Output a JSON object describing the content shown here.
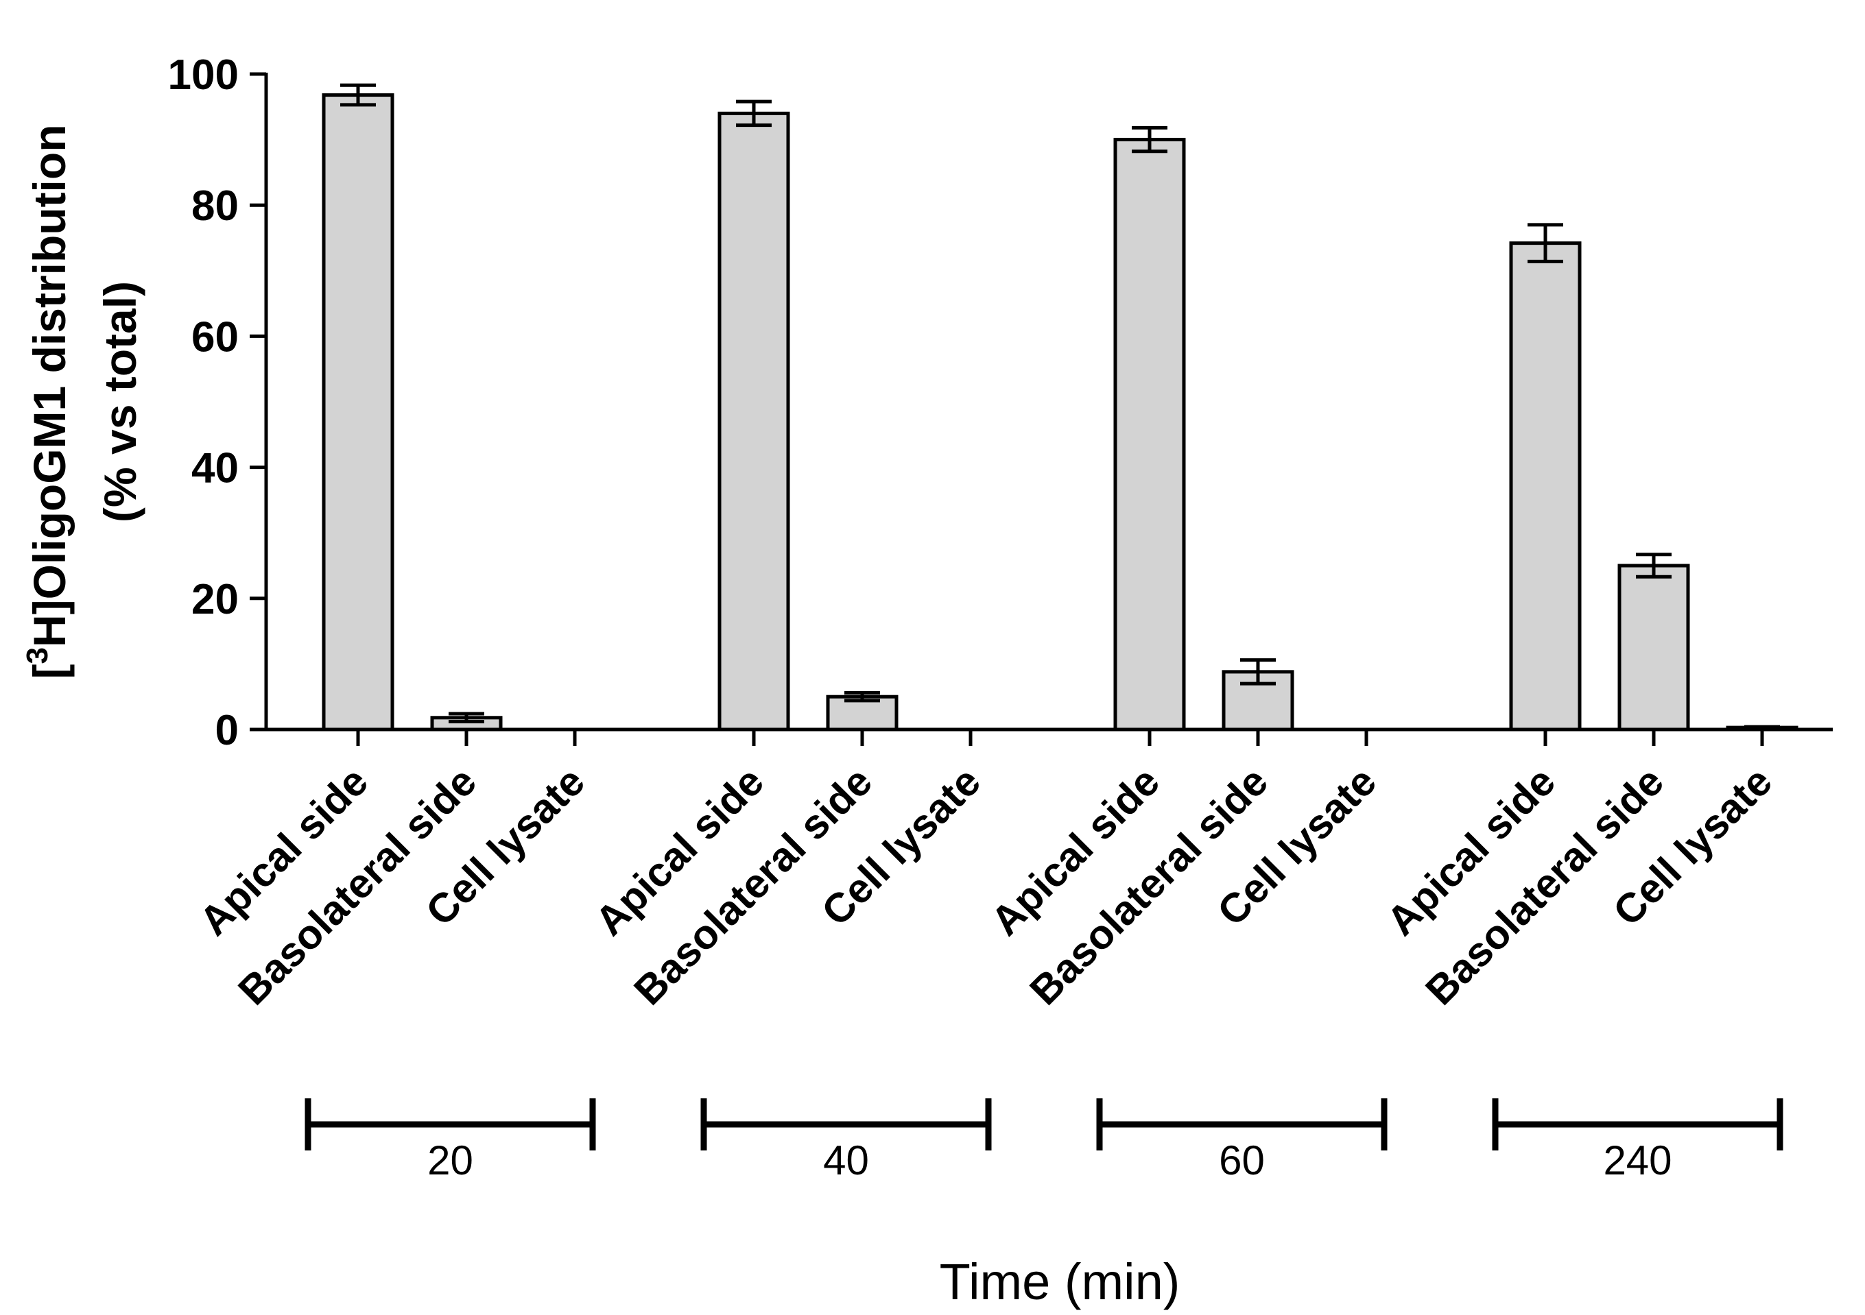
{
  "chart_data": {
    "type": "bar",
    "title": "",
    "ylabel_lines": [
      "[3H]OligoGM1  distribution",
      "(% vs total)"
    ],
    "ylabel_prefix": "[",
    "ylabel_sup": "3",
    "ylabel_main": "H]OligoGM1  distribution",
    "ylabel_second": "(% vs total)",
    "xlabel": "Time (min)",
    "ylim": [
      0,
      100
    ],
    "yticks": [
      0,
      20,
      40,
      60,
      80,
      100
    ],
    "categories": [
      "Apical side",
      "Basolateral side",
      "Cell lysate"
    ],
    "groups": [
      {
        "label": "20",
        "values": [
          96.8,
          1.8,
          0
        ],
        "errors": [
          1.5,
          0.6,
          0
        ]
      },
      {
        "label": "40",
        "values": [
          94.0,
          5.0,
          0
        ],
        "errors": [
          1.8,
          0.6,
          0
        ]
      },
      {
        "label": "60",
        "values": [
          90.0,
          8.8,
          0
        ],
        "errors": [
          1.8,
          1.8,
          0
        ]
      },
      {
        "label": "240",
        "values": [
          74.2,
          25.0,
          0.3
        ],
        "errors": [
          2.8,
          1.7,
          0.1
        ]
      }
    ],
    "bar_color": "#d3d3d3"
  }
}
